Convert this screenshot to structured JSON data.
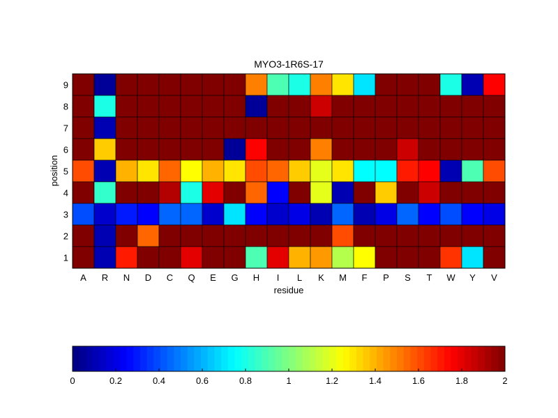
{
  "chart_data": {
    "type": "heatmap",
    "title": "MYO3-1R6S-17",
    "xlabel": "residue",
    "ylabel": "position",
    "x_categories": [
      "A",
      "R",
      "N",
      "D",
      "C",
      "Q",
      "E",
      "G",
      "H",
      "I",
      "L",
      "K",
      "M",
      "F",
      "P",
      "S",
      "T",
      "W",
      "Y",
      "V"
    ],
    "y_categories": [
      "9",
      "8",
      "7",
      "6",
      "5",
      "4",
      "3",
      "2",
      "1"
    ],
    "colormap": "jet",
    "clim": [
      0,
      2
    ],
    "colorbar": {
      "placement": "bottom",
      "ticks": [
        0,
        0.2,
        0.4,
        0.6,
        0.8,
        1,
        1.2,
        1.4,
        1.6,
        1.8,
        2
      ],
      "tick_labels": [
        "0",
        "0.2",
        "0.4",
        "0.6",
        "0.8",
        "1",
        "1.2",
        "1.4",
        "1.6",
        "1.8",
        "2"
      ]
    },
    "values": [
      [
        2.0,
        0.05,
        2.0,
        2.0,
        2.0,
        2.0,
        2.0,
        2.0,
        1.5,
        0.9,
        0.8,
        1.5,
        1.3,
        0.7,
        2.0,
        2.0,
        2.0,
        0.8,
        0.1,
        1.75
      ],
      [
        2.0,
        0.8,
        2.0,
        2.0,
        2.0,
        2.0,
        2.0,
        2.0,
        0.05,
        2.0,
        2.0,
        1.85,
        2.0,
        2.0,
        2.0,
        2.0,
        2.0,
        2.0,
        2.0,
        2.0
      ],
      [
        2.0,
        0.1,
        2.0,
        2.0,
        2.0,
        2.0,
        2.0,
        2.0,
        2.0,
        2.0,
        2.0,
        2.0,
        2.0,
        2.0,
        2.0,
        2.0,
        2.0,
        2.0,
        2.0,
        2.0
      ],
      [
        2.0,
        1.35,
        2.0,
        2.0,
        2.0,
        2.0,
        2.0,
        0.05,
        1.75,
        2.0,
        2.0,
        1.5,
        2.0,
        2.0,
        2.0,
        1.85,
        2.0,
        2.0,
        2.0,
        2.0
      ],
      [
        1.6,
        0.1,
        1.4,
        1.3,
        1.55,
        1.25,
        1.4,
        1.3,
        1.6,
        1.55,
        1.35,
        1.2,
        1.3,
        0.75,
        0.75,
        1.7,
        1.75,
        0.1,
        0.9,
        1.6
      ],
      [
        2.0,
        0.85,
        2.0,
        2.0,
        1.9,
        0.8,
        1.8,
        2.0,
        1.55,
        0.25,
        2.0,
        1.2,
        0.1,
        2.0,
        1.35,
        2.0,
        1.85,
        2.0,
        2.0,
        2.0
      ],
      [
        0.4,
        0.15,
        0.3,
        0.25,
        0.45,
        0.45,
        0.15,
        0.7,
        0.25,
        0.15,
        0.2,
        0.1,
        0.45,
        0.1,
        0.2,
        0.45,
        0.25,
        0.4,
        0.25,
        0.2
      ],
      [
        2.0,
        0.1,
        2.0,
        1.55,
        2.0,
        2.0,
        2.0,
        2.0,
        2.0,
        2.0,
        2.0,
        2.0,
        1.6,
        2.0,
        2.0,
        2.0,
        2.0,
        2.0,
        2.0,
        2.0
      ],
      [
        2.0,
        0.1,
        1.7,
        2.0,
        2.0,
        1.8,
        2.0,
        2.0,
        0.9,
        1.8,
        1.4,
        1.45,
        1.1,
        1.25,
        2.0,
        2.0,
        2.0,
        1.65,
        0.7,
        2.0
      ]
    ]
  }
}
